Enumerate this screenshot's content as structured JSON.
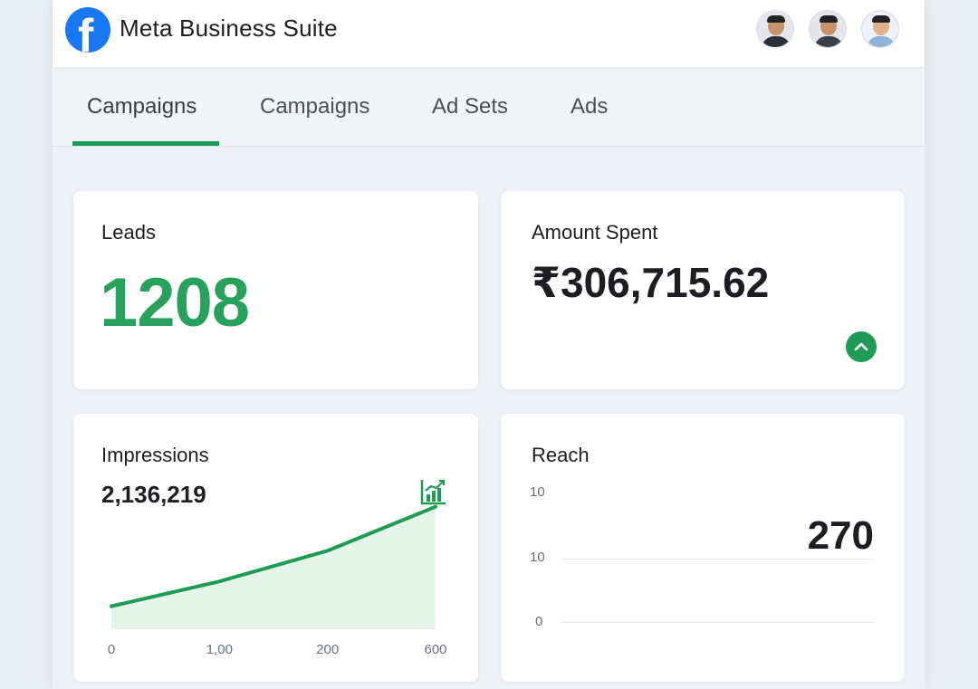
{
  "header": {
    "app_title": "Meta Business Suite",
    "logo_icon": "facebook-logo-icon",
    "brand_color": "#1877f2"
  },
  "tabs": [
    {
      "label": "Campaigns",
      "active": true
    },
    {
      "label": "Campaigns",
      "active": false
    },
    {
      "label": "Ad Sets",
      "active": false
    },
    {
      "label": "Ads",
      "active": false
    }
  ],
  "accent_color": "#1e9c55",
  "cards": {
    "leads": {
      "label": "Leads",
      "value": "1208"
    },
    "amount_spent": {
      "label": "Amount Spent",
      "value": "₹306,715.62",
      "trend_icon": "chevron-up-icon"
    },
    "impressions": {
      "label": "Impressions",
      "value": "2,136,219",
      "icon": "line-chart-icon"
    },
    "reach": {
      "label": "Reach",
      "value": "270"
    }
  },
  "chart_data": [
    {
      "type": "area",
      "categories": [
        "0",
        "1,00",
        "200",
        "600"
      ],
      "values": [
        24,
        50,
        82,
        128
      ],
      "ylim": [
        0,
        140
      ],
      "grid": false,
      "color": "#1e9c55",
      "fill": "#e6f5ea"
    },
    {
      "type": "line",
      "y_ticks": [
        "10",
        "10",
        "0"
      ],
      "grid": true
    }
  ]
}
